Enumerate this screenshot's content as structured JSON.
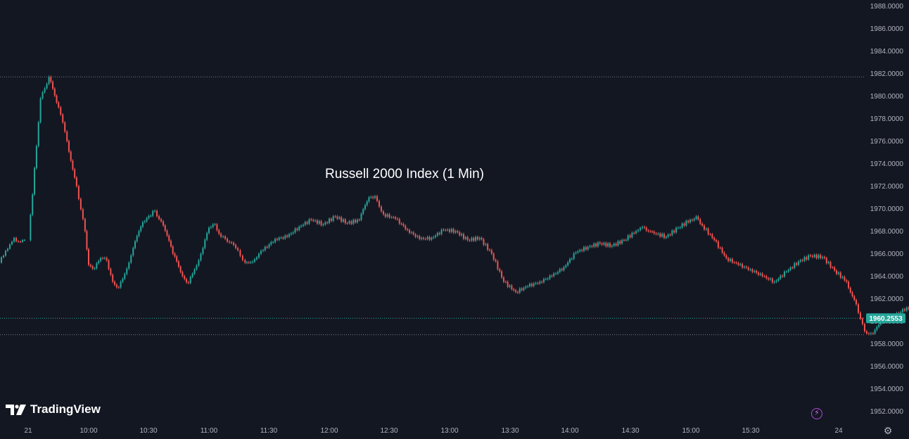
{
  "chart_data": {
    "type": "candlestick",
    "title": "Russell 2000 Index (1 Min)",
    "y_range": [
      1951,
      1988.5
    ],
    "y_ticks": [
      "1988.0000",
      "1986.0000",
      "1984.0000",
      "1982.0000",
      "1980.0000",
      "1978.0000",
      "1976.0000",
      "1974.0000",
      "1972.0000",
      "1970.0000",
      "1968.0000",
      "1966.0000",
      "1964.0000",
      "1962.0000",
      "1960.0000",
      "1958.0000",
      "1956.0000",
      "1954.0000",
      "1952.0000"
    ],
    "x_ticks": [
      "21",
      "10:00",
      "10:30",
      "11:00",
      "11:30",
      "12:00",
      "12:30",
      "13:00",
      "13:30",
      "14:00",
      "14:30",
      "15:00",
      "15:30",
      "24"
    ],
    "current_price": "1960.2553",
    "current_price_value": 1960.2553,
    "high_line": 1981.7,
    "low_line": 1958.8,
    "colors": {
      "up": "#26a69a",
      "down": "#ef5350",
      "background": "#131722",
      "grid_text": "#b2b5be",
      "price_tag": "#26a69a"
    },
    "session_start_close": 1967.2,
    "price_path": [
      [
        9.5,
        1967.2
      ],
      [
        9.6,
        1979.8
      ],
      [
        9.67,
        1981.7
      ],
      [
        9.75,
        1979
      ],
      [
        9.82,
        1976
      ],
      [
        9.9,
        1972
      ],
      [
        9.97,
        1968
      ],
      [
        10.0,
        1965
      ],
      [
        10.05,
        1964.7
      ],
      [
        10.1,
        1965.6
      ],
      [
        10.15,
        1965.4
      ],
      [
        10.2,
        1963.5
      ],
      [
        10.25,
        1963
      ],
      [
        10.3,
        1964.2
      ],
      [
        10.37,
        1966.5
      ],
      [
        10.45,
        1968.8
      ],
      [
        10.55,
        1969.8
      ],
      [
        10.62,
        1968.5
      ],
      [
        10.7,
        1966
      ],
      [
        10.78,
        1964
      ],
      [
        10.83,
        1963.4
      ],
      [
        10.88,
        1964.6
      ],
      [
        10.95,
        1966.5
      ],
      [
        11.0,
        1968.3
      ],
      [
        11.05,
        1968.6
      ],
      [
        11.1,
        1967.5
      ],
      [
        11.17,
        1967
      ],
      [
        11.24,
        1966.3
      ],
      [
        11.3,
        1965.2
      ],
      [
        11.38,
        1965.5
      ],
      [
        11.45,
        1966.3
      ],
      [
        11.55,
        1967.3
      ],
      [
        11.65,
        1967.5
      ],
      [
        11.75,
        1968.4
      ],
      [
        11.85,
        1969
      ],
      [
        11.95,
        1968.6
      ],
      [
        12.05,
        1969.3
      ],
      [
        12.15,
        1968.7
      ],
      [
        12.25,
        1969
      ],
      [
        12.33,
        1971
      ],
      [
        12.38,
        1971.1
      ],
      [
        12.45,
        1969.5
      ],
      [
        12.55,
        1969.1
      ],
      [
        12.65,
        1968.1
      ],
      [
        12.75,
        1967.3
      ],
      [
        12.85,
        1967.4
      ],
      [
        12.95,
        1968.1
      ],
      [
        13.05,
        1968
      ],
      [
        13.15,
        1967.2
      ],
      [
        13.25,
        1967.4
      ],
      [
        13.35,
        1966
      ],
      [
        13.45,
        1963.5
      ],
      [
        13.55,
        1962.6
      ],
      [
        13.65,
        1963.1
      ],
      [
        13.75,
        1963.5
      ],
      [
        13.85,
        1964
      ],
      [
        13.95,
        1964.8
      ],
      [
        14.05,
        1966.1
      ],
      [
        14.15,
        1966.6
      ],
      [
        14.25,
        1966.9
      ],
      [
        14.35,
        1966.7
      ],
      [
        14.45,
        1967.2
      ],
      [
        14.55,
        1968
      ],
      [
        14.62,
        1968.3
      ],
      [
        14.7,
        1967.8
      ],
      [
        14.8,
        1967.5
      ],
      [
        14.9,
        1968.3
      ],
      [
        15.0,
        1969
      ],
      [
        15.05,
        1969.3
      ],
      [
        15.1,
        1968.5
      ],
      [
        15.2,
        1967.2
      ],
      [
        15.3,
        1965.6
      ],
      [
        15.4,
        1965
      ],
      [
        15.5,
        1964.6
      ],
      [
        15.6,
        1964
      ],
      [
        15.7,
        1963.5
      ],
      [
        15.8,
        1964.4
      ],
      [
        15.9,
        1965.3
      ],
      [
        16.0,
        1965.8
      ],
      [
        16.1,
        1965.7
      ],
      [
        16.2,
        1964.5
      ],
      [
        16.3,
        1963.5
      ],
      [
        16.38,
        1961.5
      ],
      [
        16.45,
        1959.1
      ],
      [
        16.52,
        1958.9
      ],
      [
        16.6,
        1960
      ],
      [
        16.7,
        1960.5
      ],
      [
        16.8,
        1961.2
      ],
      [
        16.9,
        1961
      ],
      [
        17.0,
        1961.3
      ],
      [
        17.1,
        1961.6
      ],
      [
        17.2,
        1961.4
      ],
      [
        17.27,
        1960.6
      ],
      [
        17.33,
        1961.3
      ],
      [
        17.37,
        1960.5
      ],
      [
        17.42,
        1960.1
      ]
    ]
  },
  "branding": {
    "logo_text": "TradingView"
  },
  "icons": {
    "flash": "lightning-bolt-icon",
    "settings": "gear-icon",
    "logo": "tradingview-logo-icon"
  }
}
